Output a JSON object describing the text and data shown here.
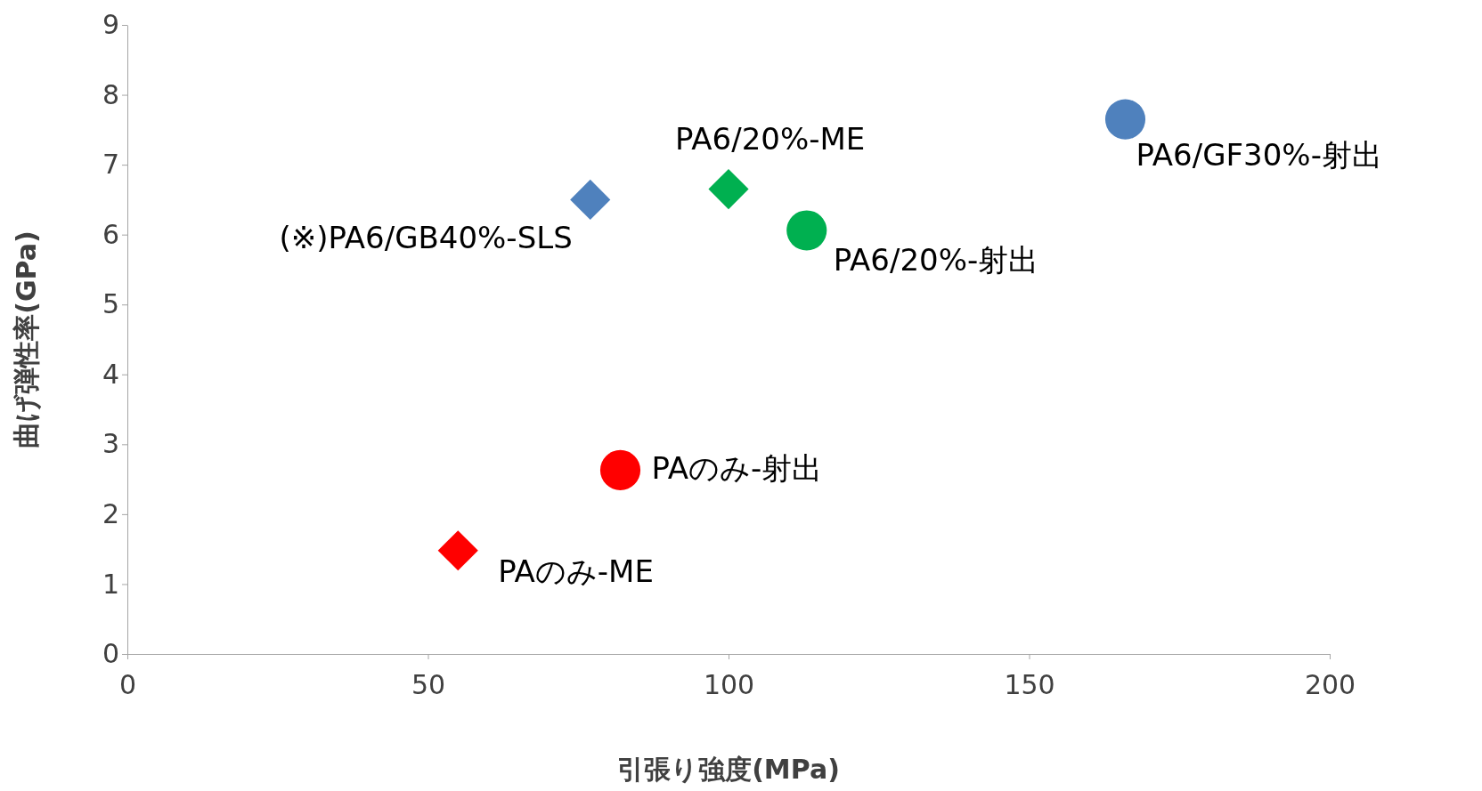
{
  "chart_data": {
    "type": "scatter",
    "xlabel": "引張り強度(MPa)",
    "ylabel": "曲げ弾性率(GPa)",
    "xlim": [
      0,
      200
    ],
    "xticks": [
      0,
      50,
      100,
      150,
      200
    ],
    "ylim": [
      0,
      9
    ],
    "yticks": [
      0,
      1,
      2,
      3,
      4,
      5,
      6,
      7,
      8,
      9
    ],
    "grid": false,
    "series": [
      {
        "name": "PA6/GF30%-射出",
        "color": "#4f81bd",
        "marker": "circle",
        "x": [
          166
        ],
        "values": [
          7.65
        ]
      },
      {
        "name": "(※)PA6/GB40%-SLS",
        "color": "#4f81bd",
        "marker": "diamond",
        "x": [
          77
        ],
        "values": [
          6.5
        ]
      },
      {
        "name": "PA6/20%-ME",
        "color": "#00b050",
        "marker": "diamond",
        "x": [
          100
        ],
        "values": [
          6.65
        ]
      },
      {
        "name": "PA6/20%-射出",
        "color": "#00b050",
        "marker": "circle",
        "x": [
          113
        ],
        "values": [
          6.06
        ]
      },
      {
        "name": "PAのみ-射出",
        "color": "#ff0000",
        "marker": "circle",
        "x": [
          82
        ],
        "values": [
          2.63
        ]
      },
      {
        "name": "PAのみ-ME",
        "color": "#ff0000",
        "marker": "diamond",
        "x": [
          55
        ],
        "values": [
          1.48
        ]
      }
    ]
  }
}
